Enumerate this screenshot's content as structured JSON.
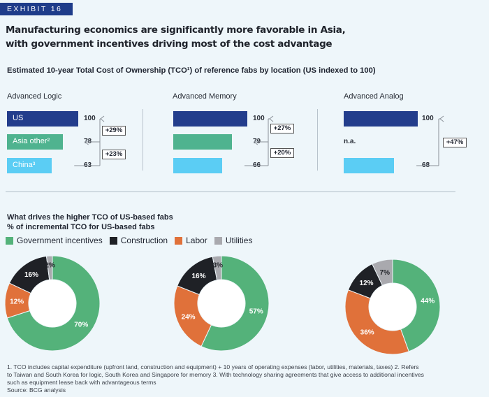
{
  "tag": "EXHIBIT 16",
  "title": {
    "line1": "Manufacturing economics are significantly more favorable in Asia,",
    "line2": "with government incentives driving most of the cost advantage"
  },
  "subtitle": "Estimated 10-year Total Cost of Ownership (TCO¹) of reference fabs by location (US indexed to 100)",
  "colors": {
    "us": "#233d8c",
    "asia_other": "#4fb38f",
    "china": "#5bcdf4",
    "government_incentives": "#54b27a",
    "construction": "#1f2126",
    "labor": "#e0713a",
    "utilities": "#a9a9ae"
  },
  "chart_data": [
    {
      "type": "bar",
      "title": "Advanced Logic",
      "categories": [
        "US",
        "Asia other²",
        "China³"
      ],
      "values": [
        100,
        78,
        63
      ],
      "deltas": [
        "+29%",
        "+23%"
      ]
    },
    {
      "type": "bar",
      "title": "Advanced Memory",
      "categories": [
        "US",
        "Asia other",
        "China"
      ],
      "values": [
        100,
        79,
        66
      ],
      "deltas": [
        "+27%",
        "+20%"
      ]
    },
    {
      "type": "bar",
      "title": "Advanced Analog",
      "categories": [
        "US",
        "Asia other",
        "China"
      ],
      "values": [
        100,
        null,
        68
      ],
      "na_label": "n.a.",
      "deltas": [
        "+47%"
      ]
    },
    {
      "type": "pie",
      "title": "What drives the higher TCO of US-based fabs",
      "subtitle": "% of incremental TCO for US-based fabs",
      "categories": [
        "Government incentives",
        "Construction",
        "Labor",
        "Utilities"
      ],
      "donuts": [
        {
          "values": [
            70,
            16,
            12,
            2
          ],
          "labels": [
            "70%",
            "16%",
            "12%",
            "2%"
          ]
        },
        {
          "values": [
            57,
            16,
            24,
            3
          ],
          "labels": [
            "57%",
            "16%",
            "24%",
            "3%"
          ]
        },
        {
          "values": [
            44,
            12,
            36,
            7
          ],
          "labels": [
            "44%",
            "12%",
            "36%",
            "7%"
          ]
        }
      ]
    }
  ],
  "footnotes": {
    "line1": "1. TCO includes capital expenditure (upfront land, construction and equipment) + 10 years of operating expenses (labor, utilities, materials, taxes) 2. Refers",
    "line2": "to Taiwan and South Korea for logic, South Korea and Singapore for memory  3. With technology sharing agreements that give access to additional incentives",
    "line3": "such as equipment lease back with advantageous terms",
    "source": "Source: BCG analysis"
  }
}
